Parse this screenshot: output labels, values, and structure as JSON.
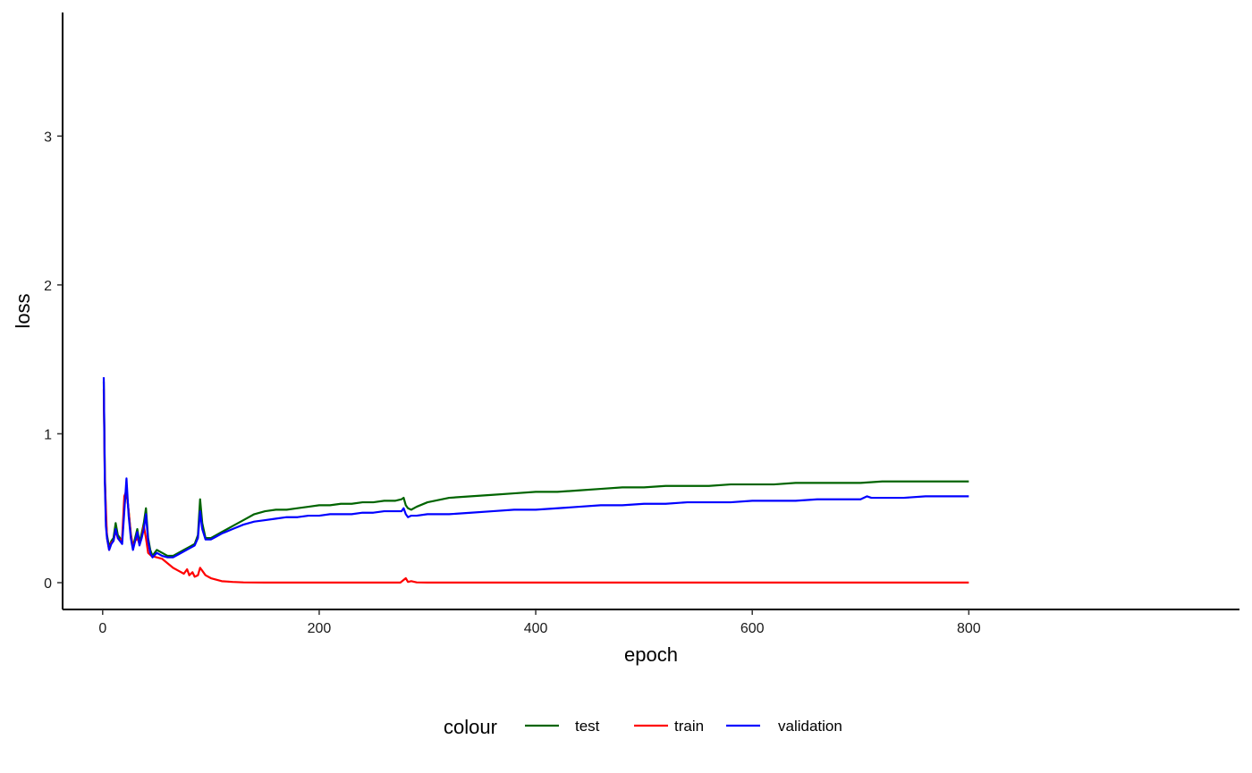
{
  "chart_data": {
    "type": "line",
    "xlabel": "epoch",
    "ylabel": "loss",
    "xlim": [
      -37,
      1050
    ],
    "ylim": [
      -0.18,
      3.83
    ],
    "x_ticks": [
      0,
      200,
      400,
      600,
      800
    ],
    "y_ticks": [
      0,
      1,
      2,
      3
    ],
    "grid": false,
    "legend": {
      "title": "colour",
      "position": "bottom"
    },
    "series": [
      {
        "name": "test",
        "color": "#006400",
        "points": [
          [
            1,
            1.35
          ],
          [
            2,
            0.75
          ],
          [
            3,
            0.42
          ],
          [
            4,
            0.32
          ],
          [
            6,
            0.24
          ],
          [
            8,
            0.28
          ],
          [
            10,
            0.3
          ],
          [
            12,
            0.4
          ],
          [
            14,
            0.32
          ],
          [
            16,
            0.3
          ],
          [
            18,
            0.28
          ],
          [
            20,
            0.52
          ],
          [
            22,
            0.62
          ],
          [
            24,
            0.48
          ],
          [
            26,
            0.33
          ],
          [
            28,
            0.24
          ],
          [
            30,
            0.3
          ],
          [
            32,
            0.36
          ],
          [
            34,
            0.27
          ],
          [
            36,
            0.33
          ],
          [
            38,
            0.4
          ],
          [
            40,
            0.5
          ],
          [
            42,
            0.3
          ],
          [
            44,
            0.22
          ],
          [
            46,
            0.18
          ],
          [
            50,
            0.22
          ],
          [
            55,
            0.2
          ],
          [
            60,
            0.18
          ],
          [
            65,
            0.18
          ],
          [
            70,
            0.2
          ],
          [
            75,
            0.22
          ],
          [
            80,
            0.24
          ],
          [
            85,
            0.26
          ],
          [
            88,
            0.32
          ],
          [
            90,
            0.56
          ],
          [
            92,
            0.4
          ],
          [
            95,
            0.3
          ],
          [
            100,
            0.3
          ],
          [
            105,
            0.32
          ],
          [
            110,
            0.34
          ],
          [
            120,
            0.38
          ],
          [
            130,
            0.42
          ],
          [
            140,
            0.46
          ],
          [
            150,
            0.48
          ],
          [
            160,
            0.49
          ],
          [
            170,
            0.49
          ],
          [
            180,
            0.5
          ],
          [
            190,
            0.51
          ],
          [
            200,
            0.52
          ],
          [
            210,
            0.52
          ],
          [
            220,
            0.53
          ],
          [
            230,
            0.53
          ],
          [
            240,
            0.54
          ],
          [
            250,
            0.54
          ],
          [
            260,
            0.55
          ],
          [
            270,
            0.55
          ],
          [
            276,
            0.56
          ],
          [
            278,
            0.57
          ],
          [
            280,
            0.52
          ],
          [
            282,
            0.5
          ],
          [
            285,
            0.49
          ],
          [
            290,
            0.51
          ],
          [
            300,
            0.54
          ],
          [
            320,
            0.57
          ],
          [
            340,
            0.58
          ],
          [
            360,
            0.59
          ],
          [
            380,
            0.6
          ],
          [
            400,
            0.61
          ],
          [
            420,
            0.61
          ],
          [
            440,
            0.62
          ],
          [
            460,
            0.63
          ],
          [
            480,
            0.64
          ],
          [
            500,
            0.64
          ],
          [
            520,
            0.65
          ],
          [
            540,
            0.65
          ],
          [
            560,
            0.65
          ],
          [
            580,
            0.66
          ],
          [
            600,
            0.66
          ],
          [
            620,
            0.66
          ],
          [
            640,
            0.67
          ],
          [
            660,
            0.67
          ],
          [
            680,
            0.67
          ],
          [
            700,
            0.67
          ],
          [
            720,
            0.68
          ],
          [
            740,
            0.68
          ],
          [
            760,
            0.68
          ],
          [
            780,
            0.68
          ],
          [
            800,
            0.68
          ]
        ]
      },
      {
        "name": "train",
        "color": "#ff0000",
        "points": [
          [
            1,
            1.3
          ],
          [
            2,
            0.7
          ],
          [
            3,
            0.5
          ],
          [
            4,
            0.3
          ],
          [
            6,
            0.22
          ],
          [
            8,
            0.27
          ],
          [
            10,
            0.28
          ],
          [
            12,
            0.35
          ],
          [
            14,
            0.3
          ],
          [
            16,
            0.28
          ],
          [
            18,
            0.3
          ],
          [
            20,
            0.58
          ],
          [
            22,
            0.62
          ],
          [
            24,
            0.48
          ],
          [
            26,
            0.32
          ],
          [
            28,
            0.24
          ],
          [
            30,
            0.28
          ],
          [
            32,
            0.3
          ],
          [
            34,
            0.26
          ],
          [
            36,
            0.3
          ],
          [
            38,
            0.38
          ],
          [
            40,
            0.3
          ],
          [
            42,
            0.2
          ],
          [
            45,
            0.18
          ],
          [
            50,
            0.17
          ],
          [
            55,
            0.16
          ],
          [
            60,
            0.13
          ],
          [
            65,
            0.1
          ],
          [
            70,
            0.08
          ],
          [
            75,
            0.06
          ],
          [
            78,
            0.09
          ],
          [
            80,
            0.05
          ],
          [
            83,
            0.07
          ],
          [
            85,
            0.04
          ],
          [
            88,
            0.05
          ],
          [
            90,
            0.1
          ],
          [
            92,
            0.08
          ],
          [
            95,
            0.05
          ],
          [
            100,
            0.03
          ],
          [
            105,
            0.02
          ],
          [
            110,
            0.01
          ],
          [
            120,
            0.005
          ],
          [
            130,
            0.002
          ],
          [
            150,
            0.001
          ],
          [
            200,
            0.001
          ],
          [
            275,
            0.001
          ],
          [
            280,
            0.03
          ],
          [
            282,
            0.005
          ],
          [
            285,
            0.01
          ],
          [
            290,
            0.002
          ],
          [
            300,
            0.001
          ],
          [
            400,
            0.001
          ],
          [
            500,
            0.001
          ],
          [
            600,
            0.001
          ],
          [
            700,
            0.001
          ],
          [
            800,
            0.001
          ]
        ]
      },
      {
        "name": "validation",
        "color": "#0000ff",
        "points": [
          [
            1,
            1.38
          ],
          [
            2,
            0.68
          ],
          [
            3,
            0.38
          ],
          [
            4,
            0.3
          ],
          [
            6,
            0.22
          ],
          [
            8,
            0.26
          ],
          [
            10,
            0.28
          ],
          [
            12,
            0.36
          ],
          [
            14,
            0.3
          ],
          [
            16,
            0.28
          ],
          [
            18,
            0.26
          ],
          [
            20,
            0.48
          ],
          [
            22,
            0.7
          ],
          [
            24,
            0.45
          ],
          [
            26,
            0.3
          ],
          [
            28,
            0.22
          ],
          [
            30,
            0.28
          ],
          [
            32,
            0.34
          ],
          [
            34,
            0.25
          ],
          [
            36,
            0.3
          ],
          [
            38,
            0.36
          ],
          [
            40,
            0.46
          ],
          [
            42,
            0.28
          ],
          [
            44,
            0.2
          ],
          [
            46,
            0.17
          ],
          [
            50,
            0.2
          ],
          [
            55,
            0.18
          ],
          [
            60,
            0.17
          ],
          [
            65,
            0.17
          ],
          [
            70,
            0.19
          ],
          [
            75,
            0.21
          ],
          [
            80,
            0.23
          ],
          [
            85,
            0.25
          ],
          [
            88,
            0.3
          ],
          [
            90,
            0.48
          ],
          [
            92,
            0.36
          ],
          [
            95,
            0.29
          ],
          [
            100,
            0.29
          ],
          [
            105,
            0.31
          ],
          [
            110,
            0.33
          ],
          [
            120,
            0.36
          ],
          [
            130,
            0.39
          ],
          [
            140,
            0.41
          ],
          [
            150,
            0.42
          ],
          [
            160,
            0.43
          ],
          [
            170,
            0.44
          ],
          [
            180,
            0.44
          ],
          [
            190,
            0.45
          ],
          [
            200,
            0.45
          ],
          [
            210,
            0.46
          ],
          [
            220,
            0.46
          ],
          [
            230,
            0.46
          ],
          [
            240,
            0.47
          ],
          [
            250,
            0.47
          ],
          [
            260,
            0.48
          ],
          [
            270,
            0.48
          ],
          [
            276,
            0.48
          ],
          [
            278,
            0.5
          ],
          [
            280,
            0.46
          ],
          [
            282,
            0.44
          ],
          [
            285,
            0.45
          ],
          [
            290,
            0.45
          ],
          [
            300,
            0.46
          ],
          [
            320,
            0.46
          ],
          [
            340,
            0.47
          ],
          [
            360,
            0.48
          ],
          [
            380,
            0.49
          ],
          [
            400,
            0.49
          ],
          [
            420,
            0.5
          ],
          [
            440,
            0.51
          ],
          [
            460,
            0.52
          ],
          [
            480,
            0.52
          ],
          [
            500,
            0.53
          ],
          [
            520,
            0.53
          ],
          [
            540,
            0.54
          ],
          [
            560,
            0.54
          ],
          [
            580,
            0.54
          ],
          [
            600,
            0.55
          ],
          [
            620,
            0.55
          ],
          [
            640,
            0.55
          ],
          [
            660,
            0.56
          ],
          [
            680,
            0.56
          ],
          [
            700,
            0.56
          ],
          [
            706,
            0.58
          ],
          [
            710,
            0.57
          ],
          [
            720,
            0.57
          ],
          [
            740,
            0.57
          ],
          [
            760,
            0.58
          ],
          [
            780,
            0.58
          ],
          [
            800,
            0.58
          ]
        ]
      }
    ]
  }
}
